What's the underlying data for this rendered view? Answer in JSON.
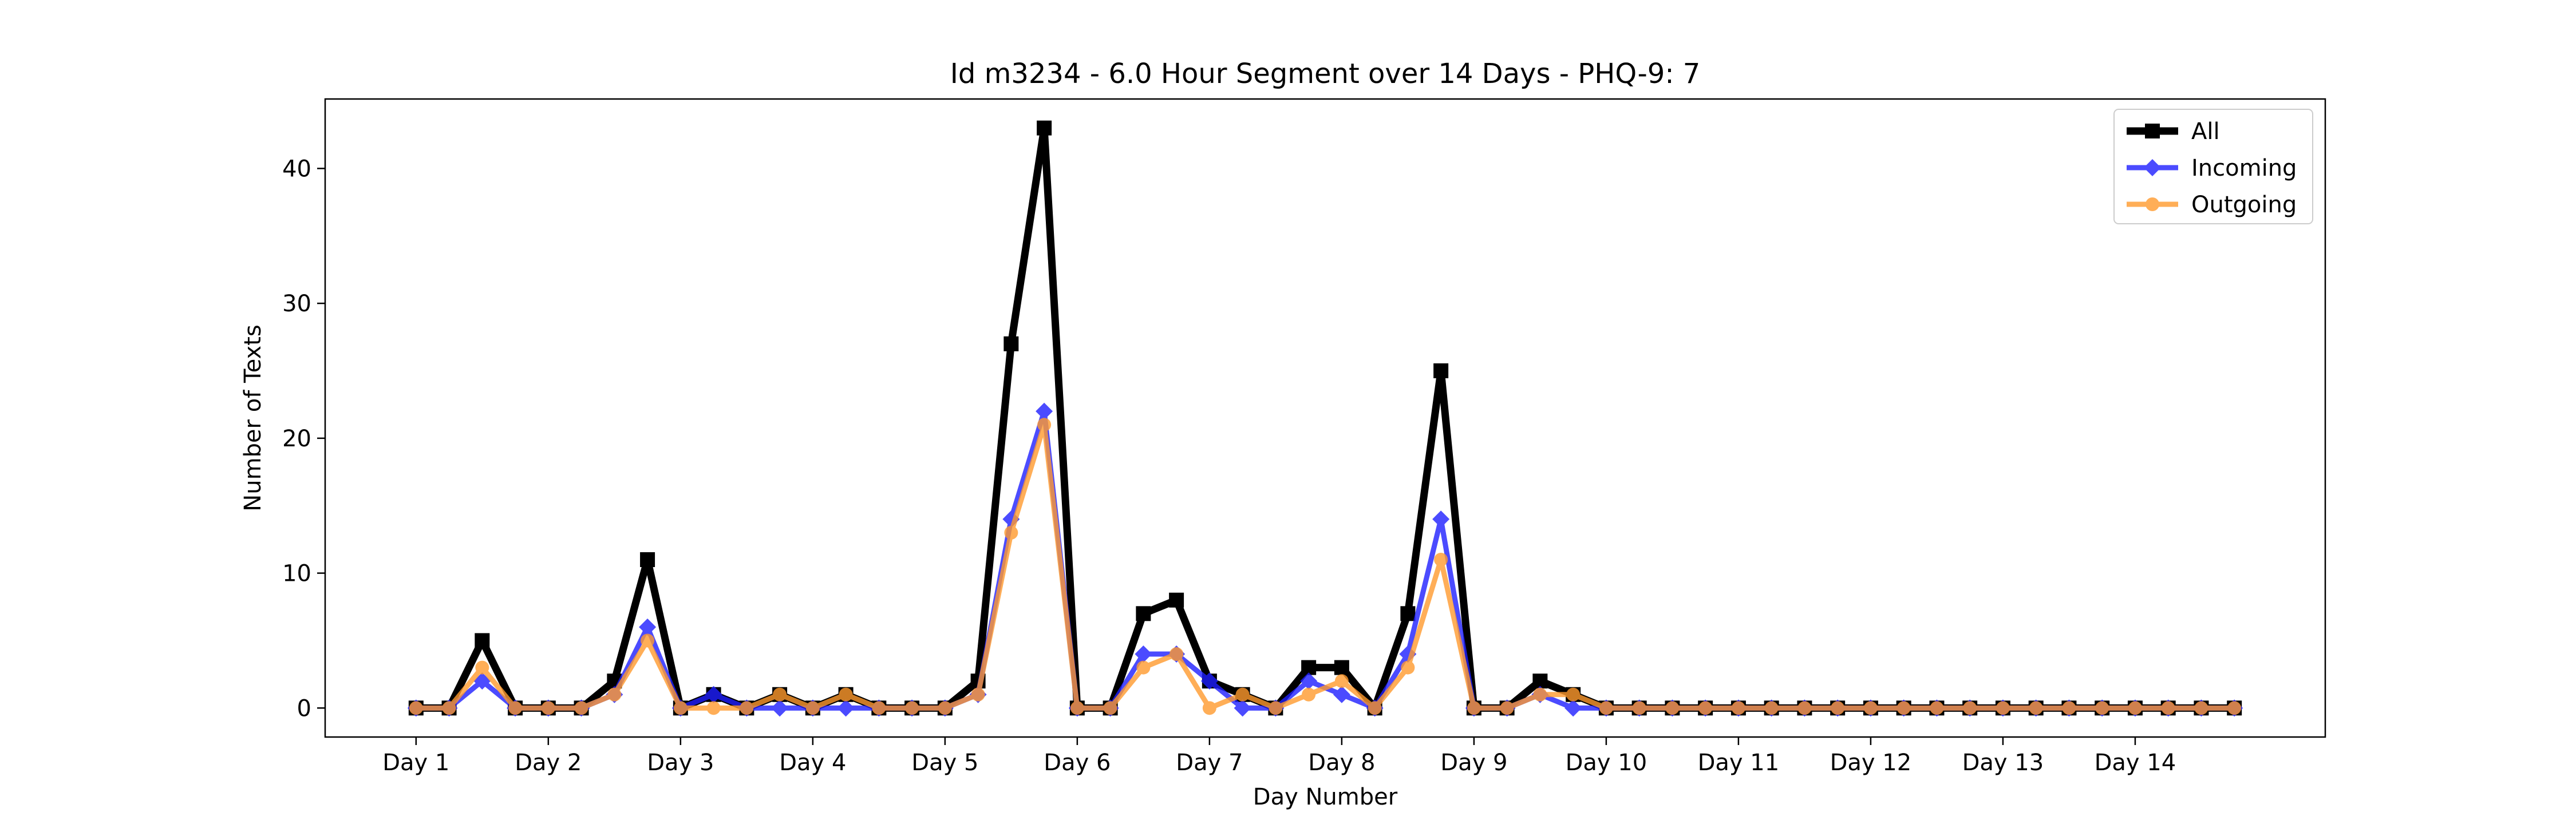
{
  "chart_data": {
    "type": "line",
    "title": "Id m3234 - 6.0 Hour Segment over 14 Days - PHQ-9: 7",
    "xlabel": "Day Number",
    "ylabel": "Number of Texts",
    "ylim": [
      -2.15,
      45.15
    ],
    "xlim": [
      -2.75,
      57.75
    ],
    "yticks": [
      0,
      10,
      20,
      30,
      40
    ],
    "xticks": [
      {
        "value": 0,
        "label": "Day 1"
      },
      {
        "value": 4,
        "label": "Day 2"
      },
      {
        "value": 8,
        "label": "Day 3"
      },
      {
        "value": 12,
        "label": "Day 4"
      },
      {
        "value": 16,
        "label": "Day 5"
      },
      {
        "value": 20,
        "label": "Day 6"
      },
      {
        "value": 24,
        "label": "Day 7"
      },
      {
        "value": 28,
        "label": "Day 8"
      },
      {
        "value": 32,
        "label": "Day 9"
      },
      {
        "value": 36,
        "label": "Day 10"
      },
      {
        "value": 40,
        "label": "Day 11"
      },
      {
        "value": 44,
        "label": "Day 12"
      },
      {
        "value": 48,
        "label": "Day 13"
      },
      {
        "value": 52,
        "label": "Day 14"
      }
    ],
    "legend_position": "top-right",
    "grid": false,
    "series": [
      {
        "name": "All",
        "color": "#000000",
        "marker": "square",
        "values": [
          0,
          0,
          5,
          0,
          0,
          0,
          2,
          11,
          0,
          1,
          0,
          1,
          0,
          1,
          0,
          0,
          0,
          2,
          27,
          43,
          0,
          0,
          7,
          8,
          2,
          1,
          0,
          3,
          3,
          0,
          7,
          25,
          0,
          0,
          2,
          1,
          0,
          0,
          0,
          0,
          0,
          0,
          0,
          0,
          0,
          0,
          0,
          0,
          0,
          0,
          0,
          0,
          0,
          0,
          0,
          0
        ]
      },
      {
        "name": "Incoming",
        "color": "#1f1fff",
        "marker": "diamond",
        "values": [
          0,
          0,
          2,
          0,
          0,
          0,
          1,
          6,
          0,
          1,
          0,
          0,
          0,
          0,
          0,
          0,
          0,
          1,
          14,
          22,
          0,
          0,
          4,
          4,
          2,
          0,
          0,
          2,
          1,
          0,
          4,
          14,
          0,
          0,
          1,
          0,
          0,
          0,
          0,
          0,
          0,
          0,
          0,
          0,
          0,
          0,
          0,
          0,
          0,
          0,
          0,
          0,
          0,
          0,
          0,
          0
        ]
      },
      {
        "name": "Outgoing",
        "color": "#ff9a2e",
        "marker": "circle",
        "values": [
          0,
          0,
          3,
          0,
          0,
          0,
          1,
          5,
          0,
          0,
          0,
          1,
          0,
          1,
          0,
          0,
          0,
          1,
          13,
          21,
          0,
          0,
          3,
          4,
          0,
          1,
          0,
          1,
          2,
          0,
          3,
          11,
          0,
          0,
          1,
          1,
          0,
          0,
          0,
          0,
          0,
          0,
          0,
          0,
          0,
          0,
          0,
          0,
          0,
          0,
          0,
          0,
          0,
          0,
          0,
          0
        ]
      }
    ]
  }
}
